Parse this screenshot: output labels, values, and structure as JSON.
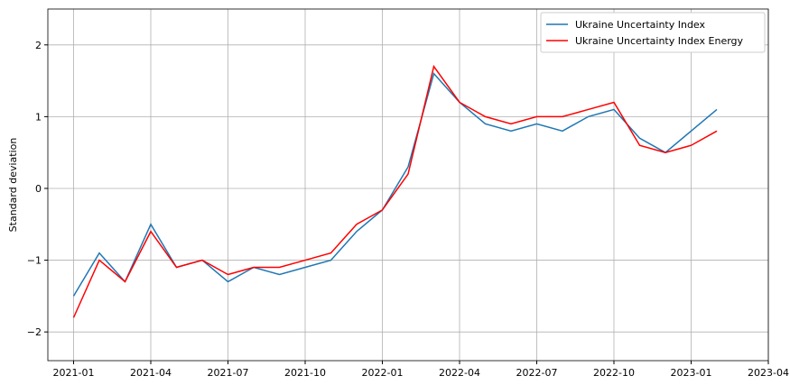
{
  "chart_data": {
    "type": "line",
    "y_label": "Standard deviation",
    "x": [
      "2021-01",
      "2021-02",
      "2021-03",
      "2021-04",
      "2021-05",
      "2021-06",
      "2021-07",
      "2021-08",
      "2021-09",
      "2021-10",
      "2021-11",
      "2021-12",
      "2022-01",
      "2022-02",
      "2022-03",
      "2022-04",
      "2022-05",
      "2022-06",
      "2022-07",
      "2022-08",
      "2022-09",
      "2022-10",
      "2022-11",
      "2022-12",
      "2023-01",
      "2023-02"
    ],
    "series": [
      {
        "name": "Ukraine Uncertainty Index",
        "color": "#1f77b4",
        "values": [
          -1.5,
          -0.9,
          -1.3,
          -0.5,
          -1.1,
          -1.0,
          -1.3,
          -1.1,
          -1.2,
          -1.1,
          -1.0,
          -0.6,
          -0.3,
          0.3,
          1.6,
          1.2,
          0.9,
          0.8,
          0.9,
          0.8,
          1.0,
          1.1,
          0.7,
          0.5,
          0.8,
          1.1
        ]
      },
      {
        "name": "Ukraine Uncertainty Index Energy",
        "color": "#ff0000",
        "values": [
          -1.8,
          -1.0,
          -1.3,
          -0.6,
          -1.1,
          -1.0,
          -1.2,
          -1.1,
          -1.1,
          -1.0,
          -0.9,
          -0.5,
          -0.3,
          0.2,
          1.7,
          1.2,
          1.0,
          0.9,
          1.0,
          1.0,
          1.1,
          1.2,
          0.6,
          0.5,
          0.6,
          0.8
        ]
      }
    ],
    "xlim": [
      "2020-12",
      "2023-04"
    ],
    "xticks": [
      "2021-01",
      "2021-04",
      "2021-07",
      "2021-10",
      "2022-01",
      "2022-04",
      "2022-07",
      "2022-10",
      "2023-01",
      "2023-04"
    ],
    "ylim": [
      -2.4,
      2.5
    ],
    "yticks": [
      {
        "value": -2,
        "label": "−2"
      },
      {
        "value": -1,
        "label": "−1"
      },
      0,
      1,
      2
    ],
    "grid": true,
    "legend": "upper right"
  }
}
